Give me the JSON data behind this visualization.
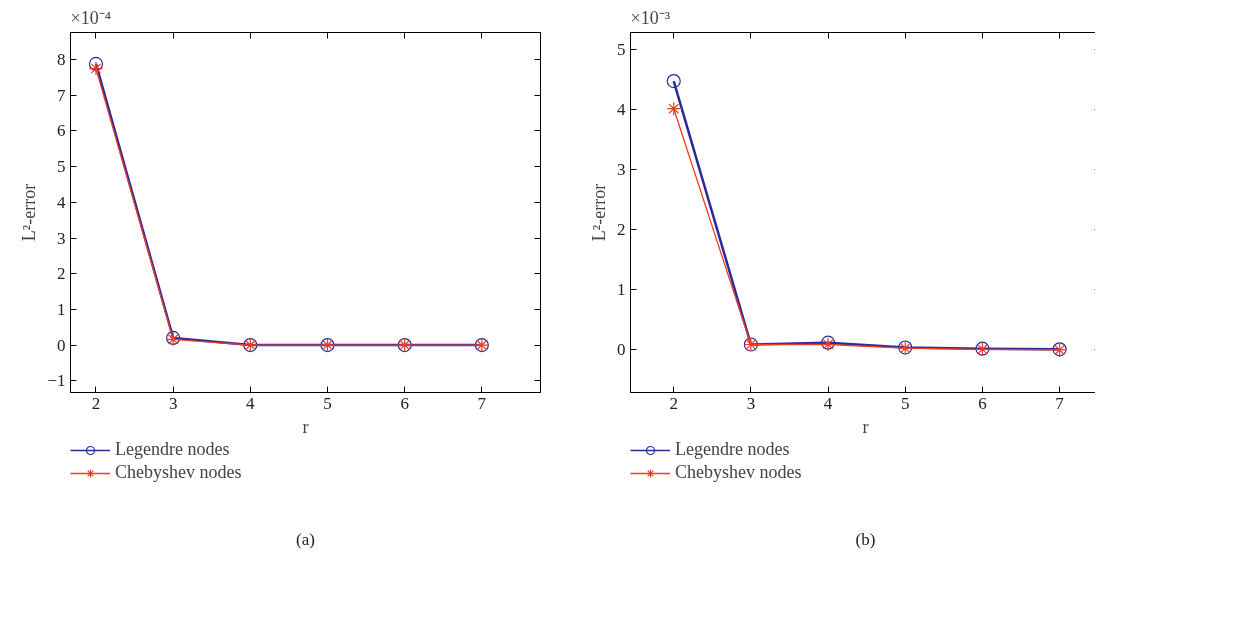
{
  "chart_data": [
    {
      "type": "line",
      "xlabel": "r",
      "ylabel": "L²-error",
      "annotations": [
        "×10⁻⁴",
        "(a)"
      ],
      "x": [
        2,
        3,
        4,
        5,
        6,
        7
      ],
      "xlim": [
        1.67,
        7.76
      ],
      "xticks": [
        2,
        3,
        4,
        5,
        6,
        7
      ],
      "ylim": [
        -1.33,
        8.76
      ],
      "yticks": [
        -1,
        0,
        1,
        2,
        3,
        4,
        5,
        6,
        7,
        8
      ],
      "grid": false,
      "legend": "bottom",
      "series": [
        {
          "name": "Legendre nodes",
          "color": "#2a2a9a",
          "marker": "circle",
          "values": [
            7.88,
            0.2,
            0,
            0,
            0,
            0
          ]
        },
        {
          "name": "Chebyshev nodes",
          "color": "#f03c24",
          "marker": "cross",
          "values": [
            7.75,
            0.16,
            0,
            0,
            0,
            0
          ]
        }
      ]
    },
    {
      "type": "line",
      "xlabel": "r",
      "ylabel": "L²-error",
      "annotations": [
        "×10⁻³",
        "(b)"
      ],
      "x": [
        2,
        3,
        4,
        5,
        6,
        7
      ],
      "xlim": [
        1.44,
        7.53
      ],
      "xticks": [
        2,
        3,
        4,
        5,
        6,
        7
      ],
      "ylim": [
        -0.71,
        5.29
      ],
      "yticks": [
        0,
        1,
        2,
        3,
        4,
        5
      ],
      "grid": false,
      "legend": "bottom",
      "series": [
        {
          "name": "Legendre nodes",
          "color": "#2a2a9a",
          "marker": "circle",
          "values": [
            4.48,
            0.09,
            0.12,
            0.04,
            0.02,
            0.01
          ]
        },
        {
          "name": "Chebyshev nodes",
          "color": "#f03c24",
          "marker": "cross",
          "values": [
            4.02,
            0.09,
            0.09,
            0.03,
            0.01,
            0.0
          ]
        }
      ]
    }
  ]
}
